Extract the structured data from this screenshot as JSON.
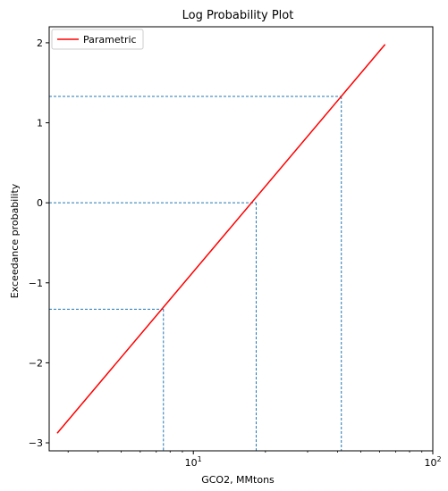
{
  "chart_data": {
    "type": "line",
    "title": "Log Probability Plot",
    "xlabel": "GCO2, MMtons",
    "ylabel": "Exceedance probability",
    "xscale": "log",
    "xlim": [
      2.5,
      100
    ],
    "ylim": [
      -3.1,
      2.2
    ],
    "x_ticks": [
      {
        "value": 10,
        "base": "10",
        "exp": "1"
      },
      {
        "value": 100,
        "base": "10",
        "exp": "2"
      }
    ],
    "y_ticks": [
      {
        "value": 2,
        "label": "2"
      },
      {
        "value": 1,
        "label": "1"
      },
      {
        "value": 0,
        "label": "0"
      },
      {
        "value": -1,
        "label": "−1"
      },
      {
        "value": -2,
        "label": "−2"
      },
      {
        "value": -3,
        "label": "−3"
      }
    ],
    "grid": false,
    "legend_position": "upper-left",
    "series": [
      {
        "name": "Parametric",
        "color": "#ff0000",
        "x": [
          2.7,
          63.2
        ],
        "y": [
          -2.88,
          1.98
        ]
      }
    ],
    "reference_lines": {
      "color": "#1f77b4",
      "style": "dashed",
      "points": [
        {
          "x": 7.5,
          "y": -1.33
        },
        {
          "x": 18.3,
          "y": 0.0
        },
        {
          "x": 41.5,
          "y": 1.33
        }
      ]
    }
  }
}
